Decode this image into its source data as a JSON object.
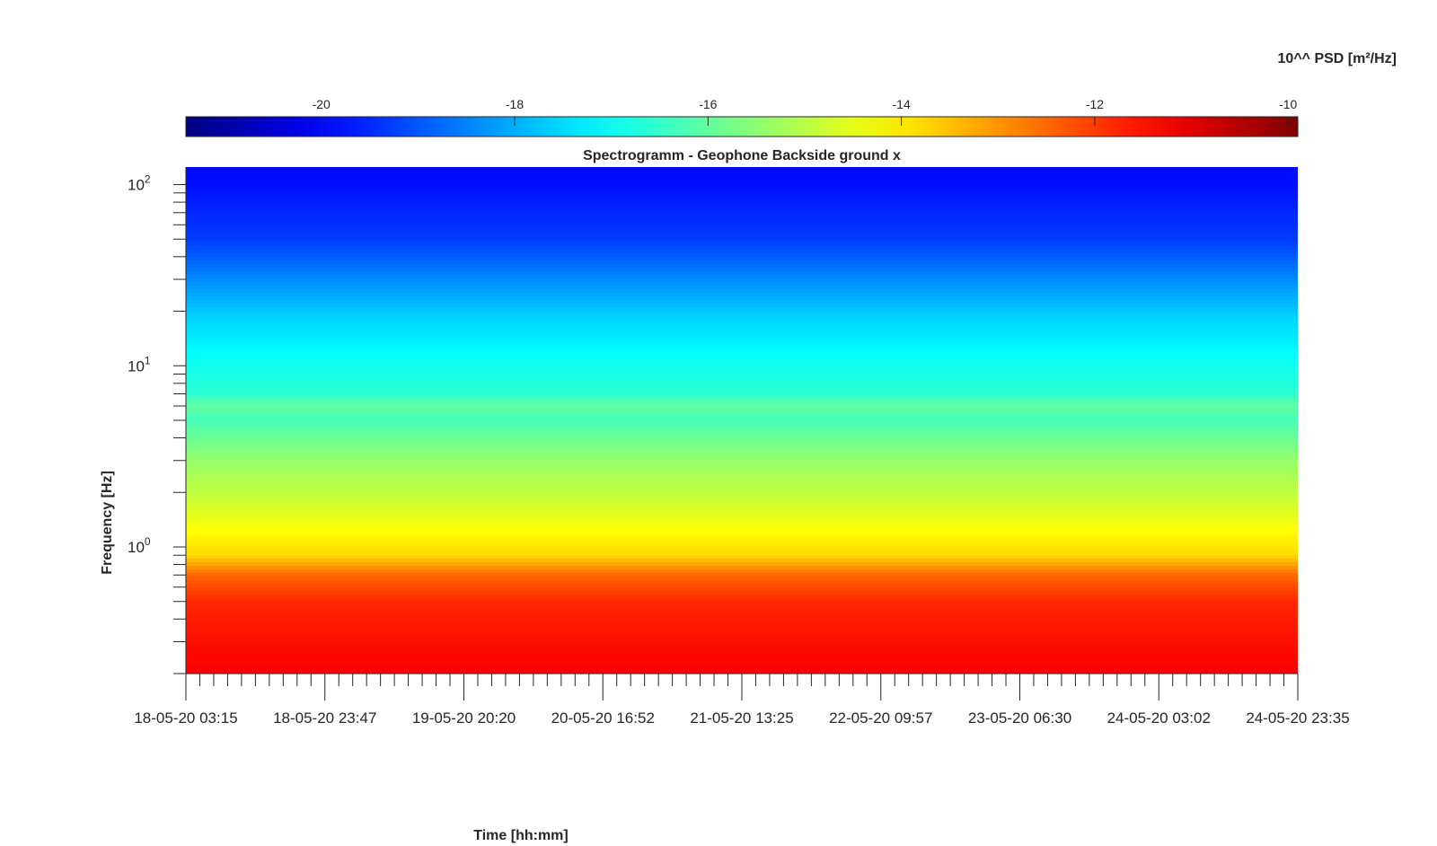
{
  "chart_data": {
    "type": "heatmap",
    "title": "Spectrogramm - Geophone Backside ground x",
    "xlabel": "Time [hh:mm]",
    "ylabel": "Frequency [Hz]",
    "colorbar": {
      "label": "10^^ PSD [m²/Hz]",
      "ticks": [
        "-20",
        "-18",
        "-16",
        "-14",
        "-12",
        "-10"
      ],
      "range": [
        -21.4,
        -9.9
      ],
      "colormap": "jet",
      "placement": "top"
    },
    "x_tick_labels": [
      "18-05-20 03:15",
      "18-05-20 23:47",
      "19-05-20 20:20",
      "20-05-20 16:52",
      "21-05-20 13:25",
      "22-05-20 09:57",
      "23-05-20 06:30",
      "24-05-20 03:02",
      "24-05-20 23:35"
    ],
    "y_scale": "log",
    "y_tick_labels": [
      {
        "base": "10",
        "exp": "0",
        "value": 1
      },
      {
        "base": "10",
        "exp": "1",
        "value": 10
      },
      {
        "base": "10",
        "exp": "2",
        "value": 100
      }
    ],
    "ylim": [
      0.2,
      125
    ],
    "xlim": [
      "18-05-20 03:15",
      "24-05-20 23:35"
    ],
    "psd_profile_by_frequency": {
      "frequency_hz": [
        0.2,
        0.3,
        0.5,
        0.7,
        0.9,
        1.2,
        1.8,
        3,
        5,
        6,
        7,
        10,
        20,
        50,
        100,
        125
      ],
      "log10_psd": [
        -11.3,
        -11.5,
        -11.8,
        -12.5,
        -13.8,
        -14.2,
        -14.8,
        -15.4,
        -16.3,
        -16.0,
        -16.6,
        -16.9,
        -17.7,
        -19.3,
        -19.8,
        -19.9
      ]
    },
    "grid": false
  }
}
